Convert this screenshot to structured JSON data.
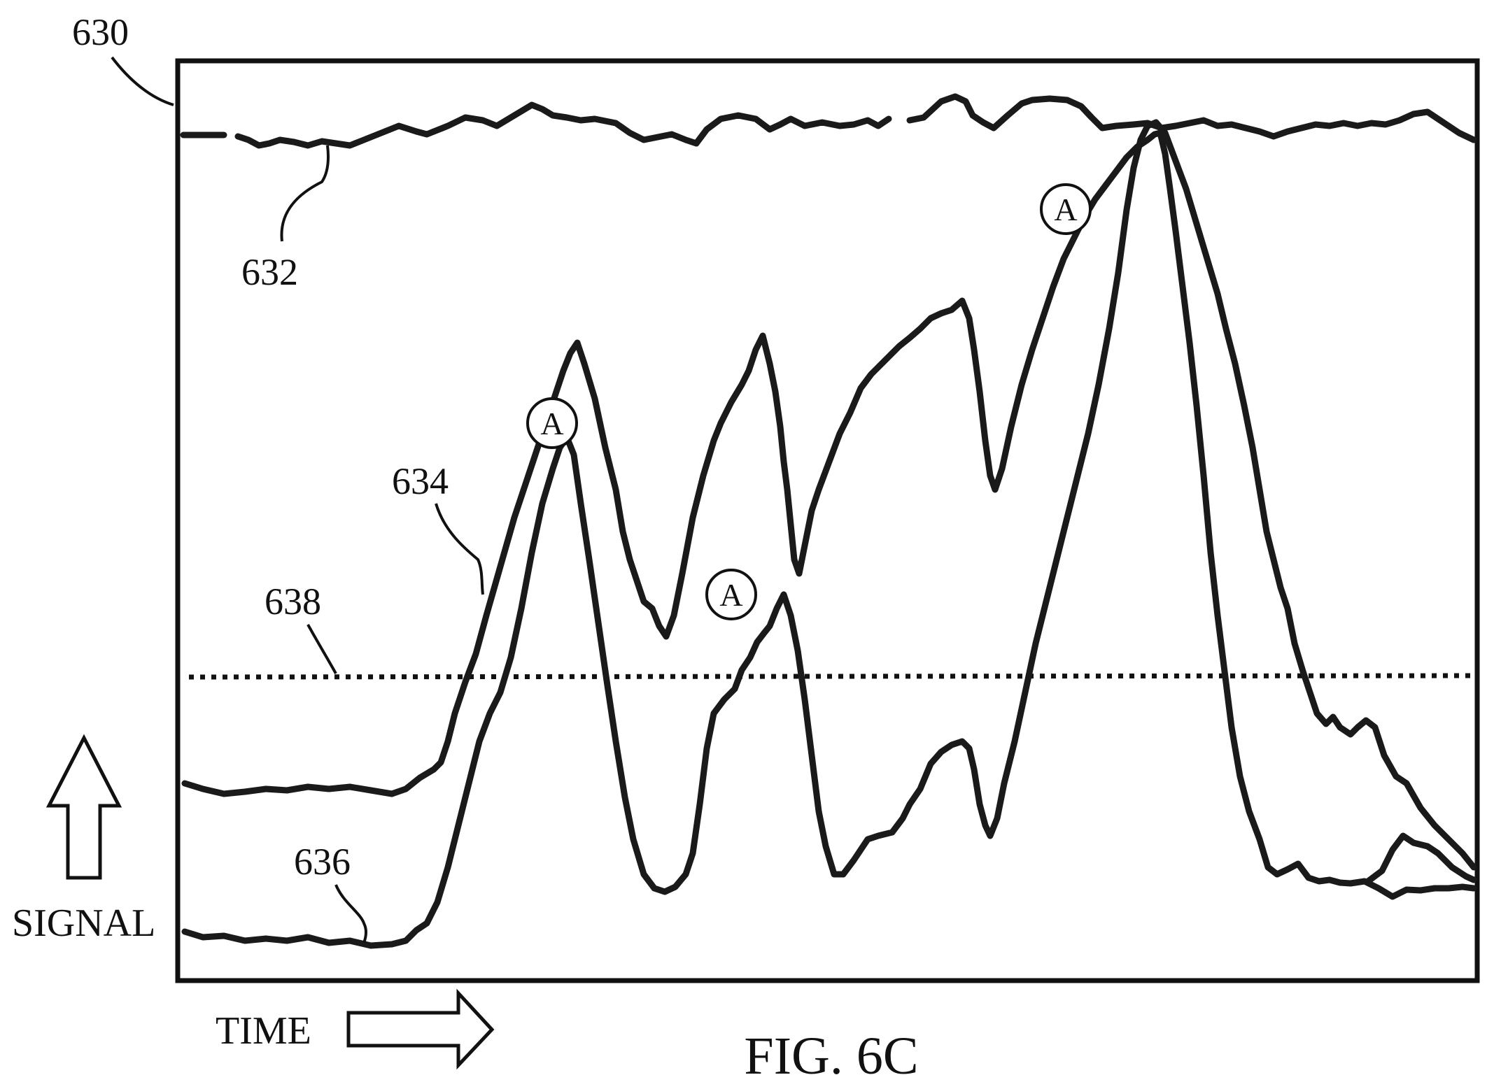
{
  "figure": {
    "caption": "FIG. 6C",
    "axis_labels": {
      "y": "SIGNAL",
      "x": "TIME"
    },
    "reference_numerals": {
      "plot": "630",
      "trace_top": "632",
      "trace_middle": "634",
      "trace_lower": "636",
      "threshold": "638"
    },
    "peak_marker_label": "A",
    "colors": {
      "ink": "#1a1a1a",
      "background": "#ffffff"
    }
  }
}
